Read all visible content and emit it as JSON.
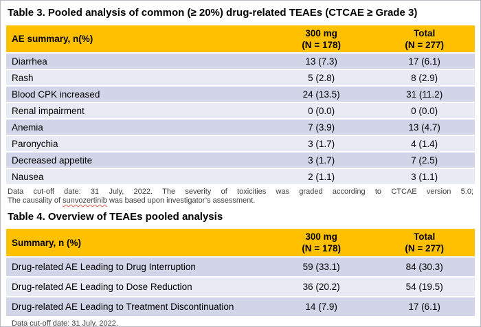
{
  "table3": {
    "title": "Table 3. Pooled analysis of common (≥ 20%) drug-related TEAEs (CTCAE ≥ Grade 3)",
    "header": {
      "col1": "AE summary, n(%)",
      "col2_line1": "300 mg",
      "col2_line2": "(N = 178)",
      "col3_line1": "Total",
      "col3_line2": "(N = 277)"
    },
    "rows": [
      {
        "label": "Diarrhea",
        "mg300": "13 (7.3)",
        "total": "17 (6.1)"
      },
      {
        "label": "Rash",
        "mg300": "5 (2.8)",
        "total": "8 (2.9)"
      },
      {
        "label": "Blood CPK increased",
        "mg300": "24 (13.5)",
        "total": "31 (11.2)"
      },
      {
        "label": "Renal impairment",
        "mg300": "0 (0.0)",
        "total": "0 (0.0)"
      },
      {
        "label": "Anemia",
        "mg300": "7 (3.9)",
        "total": "13 (4.7)"
      },
      {
        "label": "Paronychia",
        "mg300": "3 (1.7)",
        "total": "4 (1.4)"
      },
      {
        "label": "Decreased appetite",
        "mg300": "3 (1.7)",
        "total": "7 (2.5)"
      },
      {
        "label": "Nausea",
        "mg300": "2 (1.1)",
        "total": "3 (1.1)"
      }
    ],
    "footnote": {
      "line1": "Data cut-off date: 31 July, 2022. The severity of toxicities was graded according to CTCAE version 5.0;",
      "line2_prefix": "The causality of ",
      "drug_name": "sunvozertinib",
      "line2_suffix": " was based upon investigator’s assessment."
    }
  },
  "table4": {
    "title": "Table 4. Overview of TEAEs pooled analysis",
    "header": {
      "col1": "Summary, n (%)",
      "col2_line1": "300 mg",
      "col2_line2": "(N = 178)",
      "col3_line1": "Total",
      "col3_line2": "(N = 277)"
    },
    "rows": [
      {
        "label": "Drug-related AE Leading to Drug Interruption",
        "mg300": "59 (33.1)",
        "total": "84 (30.3)"
      },
      {
        "label": "Drug-related AE Leading to Dose Reduction",
        "mg300": "36 (20.2)",
        "total": "54 (19.5)"
      },
      {
        "label": "Drug-related AE Leading to Treatment Discontinuation",
        "mg300": "14 (7.9)",
        "total": "17 (6.1)"
      }
    ],
    "footnote": "Data cut-off date: 31 July, 2022."
  },
  "colors": {
    "header_bg": "#FFC000",
    "row_shade_dark": "#D2D5E8",
    "row_shade_light": "#E8EAF4",
    "spellcheck_underline": "#E0564E"
  }
}
